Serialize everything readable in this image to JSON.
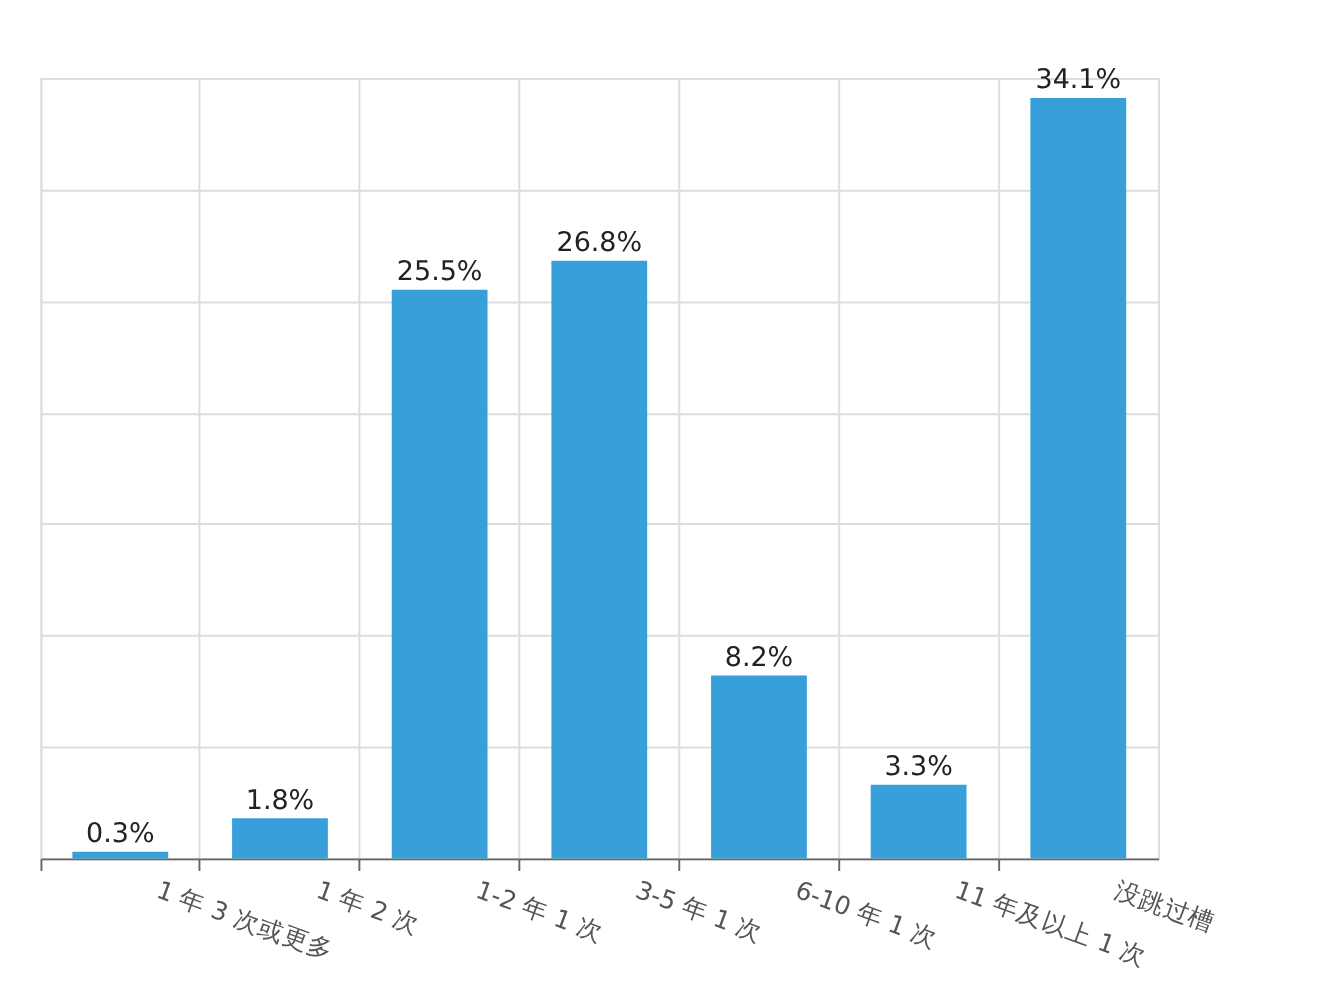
{
  "chart_data": {
    "type": "bar",
    "categories": [
      "1 年 3 次或更多",
      "1 年 2 次",
      "1-2 年 1 次",
      "3-5 年 1 次",
      "6-10 年 1 次",
      "11 年及以上 1 次",
      "没跳过槽"
    ],
    "values": [
      0.3,
      1.8,
      25.5,
      26.8,
      8.2,
      3.3,
      34.1
    ],
    "value_labels": [
      "0.3%",
      "1.8%",
      "25.5%",
      "26.8%",
      "8.2%",
      "3.3%",
      "34.1%"
    ],
    "color": "#37a0da",
    "ylim": [
      0,
      35
    ],
    "yticks": [
      {
        "value": 0,
        "label": null
      },
      {
        "value": 5,
        "label": null
      },
      {
        "value": 10,
        "label": null
      },
      {
        "value": 15,
        "label": null
      },
      {
        "value": 20,
        "label": null
      },
      {
        "value": 25,
        "label": null
      },
      {
        "value": 30,
        "label": null
      },
      {
        "value": 35,
        "label": null
      }
    ],
    "grid": true,
    "tick_labels": "x"
  }
}
